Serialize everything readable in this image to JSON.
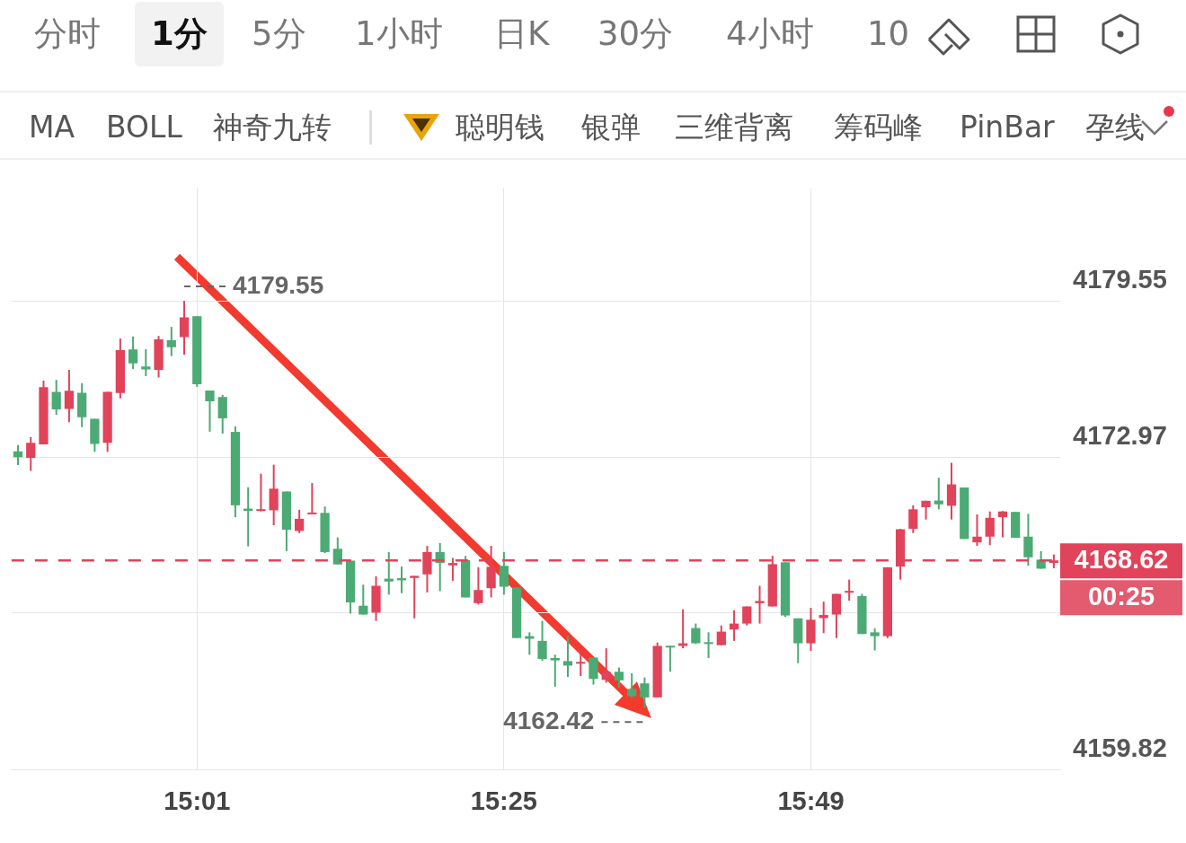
{
  "chart_data": {
    "type": "candlestick",
    "categories": [
      null,
      null,
      null,
      null,
      null,
      null,
      null,
      null,
      null,
      null,
      null,
      null,
      null,
      null,
      "15:01",
      null,
      null,
      null,
      null,
      null,
      null,
      null,
      null,
      null,
      null,
      null,
      null,
      null,
      null,
      null,
      null,
      null,
      null,
      null,
      null,
      null,
      null,
      null,
      "15:25",
      null,
      null,
      null,
      null,
      null,
      null,
      null,
      null,
      null,
      null,
      null,
      null,
      null,
      null,
      null,
      null,
      null,
      null,
      null,
      null,
      null,
      null,
      null,
      "15:49",
      null,
      null,
      null,
      null,
      null,
      null,
      null,
      null,
      null,
      null,
      null,
      null,
      null,
      null,
      null,
      null,
      null,
      null,
      null
    ],
    "ohlc": [
      [
        4173.21,
        4173.48,
        4172.63,
        4172.97
      ],
      [
        4172.94,
        4173.81,
        4172.39,
        4173.57
      ],
      [
        4173.5,
        4176.19,
        4173.5,
        4175.91
      ],
      [
        4175.72,
        4176.22,
        4174.75,
        4174.98
      ],
      [
        4175.0,
        4176.64,
        4174.44,
        4175.76
      ],
      [
        4175.68,
        4176.08,
        4174.23,
        4174.65
      ],
      [
        4174.58,
        4174.58,
        4173.19,
        4173.52
      ],
      [
        4173.57,
        4175.72,
        4173.19,
        4175.72
      ],
      [
        4175.67,
        4177.96,
        4175.44,
        4177.47
      ],
      [
        4177.5,
        4178.05,
        4176.68,
        4176.92
      ],
      [
        4176.78,
        4177.51,
        4176.38,
        4176.66
      ],
      [
        4176.64,
        4178.07,
        4176.32,
        4177.93
      ],
      [
        4177.89,
        4178.45,
        4177.22,
        4177.6
      ],
      [
        4178.02,
        4179.55,
        4177.28,
        4178.85
      ],
      [
        4178.9,
        4178.9,
        4175.93,
        4176.04
      ],
      [
        4175.77,
        4175.77,
        4174.04,
        4175.32
      ],
      [
        4175.5,
        4175.59,
        4173.96,
        4174.6
      ],
      [
        4174.03,
        4174.26,
        4170.44,
        4170.94
      ],
      [
        4170.8,
        4171.7,
        4169.21,
        4170.7
      ],
      [
        4170.7,
        4172.27,
        4170.68,
        4170.75
      ],
      [
        4170.73,
        4172.65,
        4170.1,
        4171.64
      ],
      [
        4171.52,
        4171.52,
        4169.01,
        4169.91
      ],
      [
        4169.86,
        4170.75,
        4169.77,
        4170.37
      ],
      [
        4170.56,
        4171.88,
        4170.56,
        4170.62
      ],
      [
        4170.62,
        4170.89,
        4168.93,
        4168.97
      ],
      [
        4169.11,
        4169.59,
        4168.45,
        4168.45
      ],
      [
        4168.61,
        4168.61,
        4166.38,
        4166.85
      ],
      [
        4166.71,
        4167.6,
        4166.34,
        4166.34
      ],
      [
        4166.42,
        4167.95,
        4166.07,
        4167.55
      ],
      [
        4167.85,
        4168.97,
        4167.18,
        4167.73
      ],
      [
        4167.87,
        4168.36,
        4167.24,
        4167.78
      ],
      [
        4167.88,
        4167.97,
        4166.18,
        4167.97
      ],
      [
        4168.03,
        4169.23,
        4167.27,
        4168.97
      ],
      [
        4168.97,
        4169.35,
        4167.33,
        4168.51
      ],
      [
        4168.41,
        4168.72,
        4167.76,
        4168.51
      ],
      [
        4168.63,
        4168.81,
        4167.06,
        4167.06
      ],
      [
        4166.82,
        4168.33,
        4166.76,
        4167.37
      ],
      [
        4167.45,
        4169.23,
        4167.06,
        4168.35
      ],
      [
        4168.39,
        4168.97,
        4167.18,
        4167.51
      ],
      [
        4167.48,
        4167.48,
        4165.35,
        4165.35
      ],
      [
        4165.43,
        4165.59,
        4164.65,
        4165.32
      ],
      [
        4165.23,
        4166.07,
        4164.39,
        4164.47
      ],
      [
        4164.51,
        4164.65,
        4163.3,
        4164.41
      ],
      [
        4164.38,
        4165.43,
        4163.71,
        4164.19
      ],
      [
        4164.27,
        4164.83,
        4163.75,
        4164.31
      ],
      [
        4164.53,
        4164.53,
        4163.39,
        4163.63
      ],
      [
        4163.59,
        4164.92,
        4163.47,
        4163.93
      ],
      [
        4163.93,
        4164.11,
        4163.27,
        4163.57
      ],
      [
        4163.21,
        4163.87,
        4162.85,
        4162.9
      ],
      [
        4163.44,
        4163.69,
        4162.42,
        4162.85
      ],
      [
        4162.85,
        4165.16,
        4162.85,
        4165.02
      ],
      [
        4165.02,
        4165.02,
        4163.94,
        4164.95
      ],
      [
        4165.02,
        4166.56,
        4164.92,
        4165.13
      ],
      [
        4165.77,
        4165.96,
        4165.1,
        4165.13
      ],
      [
        4165.16,
        4165.59,
        4164.51,
        4165.1
      ],
      [
        4165.05,
        4165.88,
        4165.05,
        4165.62
      ],
      [
        4165.71,
        4166.52,
        4165.23,
        4165.96
      ],
      [
        4165.96,
        4166.68,
        4165.88,
        4166.68
      ],
      [
        4166.82,
        4167.55,
        4165.96,
        4166.91
      ],
      [
        4166.68,
        4168.81,
        4166.68,
        4168.46
      ],
      [
        4168.54,
        4168.54,
        4166.24,
        4166.3
      ],
      [
        4166.18,
        4166.18,
        4164.29,
        4165.13
      ],
      [
        4165.13,
        4166.62,
        4164.81,
        4166.12
      ],
      [
        4166.19,
        4166.88,
        4165.56,
        4166.32
      ],
      [
        4166.34,
        4167.21,
        4165.35,
        4167.21
      ],
      [
        4167.26,
        4167.81,
        4166.92,
        4167.33
      ],
      [
        4167.12,
        4167.21,
        4165.52,
        4165.52
      ],
      [
        4165.59,
        4165.76,
        4164.83,
        4165.43
      ],
      [
        4165.43,
        4168.33,
        4165.35,
        4168.33
      ],
      [
        4168.36,
        4169.95,
        4167.81,
        4169.93
      ],
      [
        4169.95,
        4170.94,
        4169.77,
        4170.77
      ],
      [
        4170.86,
        4171.13,
        4170.34,
        4171.13
      ],
      [
        4171.14,
        4172.1,
        4170.77,
        4170.98
      ],
      [
        4170.92,
        4172.73,
        4170.34,
        4171.82
      ],
      [
        4171.69,
        4171.69,
        4169.52,
        4169.52
      ],
      [
        4169.38,
        4170.56,
        4169.23,
        4169.62
      ],
      [
        4169.62,
        4170.68,
        4169.26,
        4170.41
      ],
      [
        4170.44,
        4170.7,
        4169.59,
        4170.68
      ],
      [
        4170.66,
        4170.66,
        4169.57,
        4169.57
      ],
      [
        4169.62,
        4170.58,
        4168.39,
        4168.75
      ],
      [
        4168.65,
        4169.01,
        4168.27,
        4168.27
      ],
      [
        4168.51,
        4168.87,
        4168.29,
        4168.62
      ]
    ],
    "colors": [
      "#4caa74",
      "#e0435a",
      "#e0435a",
      "#4caa74",
      "#e0435a",
      "#4caa74",
      "#4caa74",
      "#e0435a",
      "#e0435a",
      "#4caa74",
      "#4caa74",
      "#e0435a",
      "#4caa74",
      "#e0435a",
      "#4caa74",
      "#4caa74",
      "#4caa74",
      "#4caa74",
      "#4caa74",
      "#e0435a",
      "#e0435a",
      "#4caa74",
      "#e0435a",
      "#e0435a",
      "#4caa74",
      "#4caa74",
      "#4caa74",
      "#4caa74",
      "#e0435a",
      "#4caa74",
      "#4caa74",
      "#e0435a",
      "#e0435a",
      "#4caa74",
      "#e0435a",
      "#4caa74",
      "#e0435a",
      "#e0435a",
      "#4caa74",
      "#4caa74",
      "#4caa74",
      "#4caa74",
      "#4caa74",
      "#4caa74",
      "#e0435a",
      "#4caa74",
      "#e0435a",
      "#4caa74",
      "#4caa74",
      "#4caa74",
      "#e0435a",
      "#4caa74",
      "#e0435a",
      "#4caa74",
      "#4caa74",
      "#e0435a",
      "#e0435a",
      "#e0435a",
      "#e0435a",
      "#e0435a",
      "#4caa74",
      "#4caa74",
      "#e0435a",
      "#e0435a",
      "#e0435a",
      "#e0435a",
      "#4caa74",
      "#4caa74",
      "#e0435a",
      "#e0435a",
      "#e0435a",
      "#e0435a",
      "#4caa74",
      "#e0435a",
      "#4caa74",
      "#e0435a",
      "#e0435a",
      "#e0435a",
      "#4caa74",
      "#4caa74",
      "#4caa74",
      "#e0435a"
    ],
    "ylim": [
      4159.82,
      4184.3
    ],
    "yticks": [
      4159.82,
      {
        "value": 4166.4,
        "label": null
      },
      4172.97,
      4179.55
    ],
    "grid": true,
    "legend": false,
    "ref_lines": [
      {
        "axis": "y",
        "value": 4168.62,
        "label": "4168.62\n00:25",
        "color": "#e0435a",
        "line_style": "dashed"
      }
    ],
    "annotations": [
      "分时",
      "1分",
      "5分",
      "1小时",
      "日K",
      "30分",
      "4小时",
      "10",
      "MA",
      "BOLL",
      "神奇九转",
      "聪明钱",
      "银弹",
      "三维背离",
      "筹码峰",
      "PinBar",
      "孕线",
      "4179.55",
      "4162.42"
    ]
  }
}
